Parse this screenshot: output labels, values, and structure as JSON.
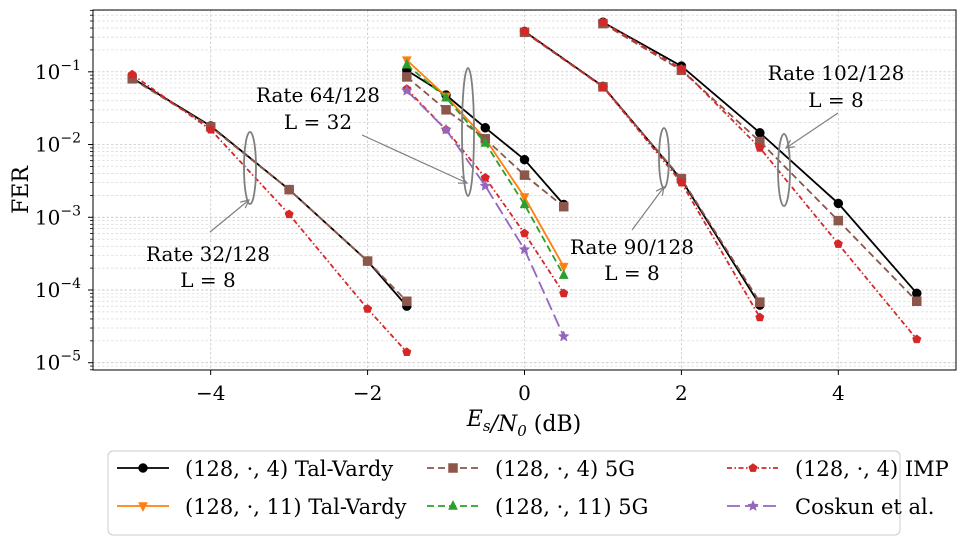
{
  "chart_data": {
    "type": "line",
    "xlabel": "Es/N0 (dB)",
    "ylabel": "FER",
    "xlim": [
      -5.5,
      5.5
    ],
    "ylim_log10": [
      -5.1,
      -0.15
    ],
    "xticks": [
      -4,
      -2,
      0,
      2,
      4
    ],
    "xtick_labels": [
      "−4",
      "−2",
      "0",
      "2",
      "4"
    ],
    "yticks": [
      -1,
      -2,
      -3,
      -4,
      -5
    ],
    "ytick_labels": [
      "10",
      "10",
      "10",
      "10",
      "10"
    ],
    "ytick_exponents": [
      "−1",
      "−2",
      "−3",
      "−4",
      "−5"
    ],
    "grid": true,
    "legend_position": "bottom",
    "series": [
      {
        "name": "(128, ·, 4) Tal-Vardy",
        "color": "#000000",
        "dash": "solid",
        "marker": "circle",
        "segments": [
          [
            [
              -5,
              0.082
            ],
            [
              -4,
              0.018
            ],
            [
              -3,
              0.0024
            ],
            [
              -2,
              0.00025
            ],
            [
              -1.5,
              6e-05
            ]
          ],
          [
            [
              -1.5,
              0.105
            ],
            [
              -1,
              0.048
            ],
            [
              -0.5,
              0.017
            ],
            [
              0,
              0.0062
            ],
            [
              0.5,
              0.0015
            ]
          ],
          [
            [
              0,
              0.36
            ],
            [
              1,
              0.063
            ],
            [
              2,
              0.0033
            ],
            [
              3,
              6.2e-05
            ]
          ],
          [
            [
              1,
              0.48
            ],
            [
              2,
              0.12
            ],
            [
              3,
              0.0145
            ],
            [
              4,
              0.00155
            ],
            [
              5,
              9e-05
            ]
          ]
        ]
      },
      {
        "name": "(128, ·, 11) Tal-Vardy",
        "color": "#ff7f0e",
        "dash": "solid",
        "marker": "triangle-down",
        "segments": [
          [
            [
              -1.5,
              0.145
            ],
            [
              -1,
              0.046
            ],
            [
              -0.5,
              0.012
            ],
            [
              0,
              0.0019
            ],
            [
              0.5,
              0.00021
            ]
          ]
        ]
      },
      {
        "name": "(128, ·, 4) 5G",
        "color": "#8c564b",
        "dash": "dashed",
        "marker": "square",
        "segments": [
          [
            [
              -5,
              0.08
            ],
            [
              -4,
              0.0175
            ],
            [
              -3,
              0.0024
            ],
            [
              -2,
              0.00025
            ],
            [
              -1.5,
              7e-05
            ]
          ],
          [
            [
              -1.5,
              0.085
            ],
            [
              -1,
              0.03
            ],
            [
              -0.5,
              0.012
            ],
            [
              0,
              0.0038
            ],
            [
              0.5,
              0.0014
            ]
          ],
          [
            [
              0,
              0.35
            ],
            [
              1,
              0.062
            ],
            [
              2,
              0.0034
            ],
            [
              3,
              6.8e-05
            ]
          ],
          [
            [
              1,
              0.46
            ],
            [
              2,
              0.105
            ],
            [
              3,
              0.011
            ],
            [
              4,
              0.0009
            ],
            [
              5,
              7e-05
            ]
          ]
        ]
      },
      {
        "name": "(128, ·, 11) 5G",
        "color": "#2ca02c",
        "dash": "dashed",
        "marker": "triangle-up",
        "segments": [
          [
            [
              -1.5,
              0.125
            ],
            [
              -1,
              0.044
            ],
            [
              -0.5,
              0.0105
            ],
            [
              0,
              0.0015
            ],
            [
              0.5,
              0.00016
            ]
          ]
        ]
      },
      {
        "name": "(128, ·, 4) IMP",
        "color": "#d62728",
        "dash": "dashdot",
        "marker": "pentagon",
        "segments": [
          [
            [
              -5,
              0.092
            ],
            [
              -4,
              0.016
            ],
            [
              -3,
              0.0011
            ],
            [
              -2,
              5.5e-05
            ],
            [
              -1.5,
              1.4e-05
            ]
          ],
          [
            [
              -1.5,
              0.058
            ],
            [
              -1,
              0.016
            ],
            [
              -0.5,
              0.0035
            ],
            [
              0,
              0.0006
            ],
            [
              0.5,
              9e-05
            ]
          ],
          [
            [
              0,
              0.36
            ],
            [
              1,
              0.062
            ],
            [
              2,
              0.003
            ],
            [
              3,
              4.2e-05
            ]
          ],
          [
            [
              1,
              0.48
            ],
            [
              2,
              0.11
            ],
            [
              3,
              0.009
            ],
            [
              4,
              0.00043
            ],
            [
              5,
              2.1e-05
            ]
          ]
        ]
      },
      {
        "name": "Coskun et al.",
        "color": "#9467bd",
        "dash": "longdash",
        "marker": "star",
        "segments": [
          [
            [
              -1.5,
              0.055
            ],
            [
              -1,
              0.016
            ],
            [
              -0.5,
              0.0027
            ],
            [
              0,
              0.00036
            ],
            [
              0.5,
              2.3e-05
            ]
          ]
        ]
      }
    ],
    "annotations": [
      {
        "lines": [
          "Rate 32/128",
          "L = 8"
        ]
      },
      {
        "lines": [
          "Rate 64/128",
          "L = 32"
        ]
      },
      {
        "lines": [
          "Rate 90/128",
          "L = 8"
        ]
      },
      {
        "lines": [
          "Rate 102/128",
          "L = 8"
        ]
      }
    ]
  }
}
